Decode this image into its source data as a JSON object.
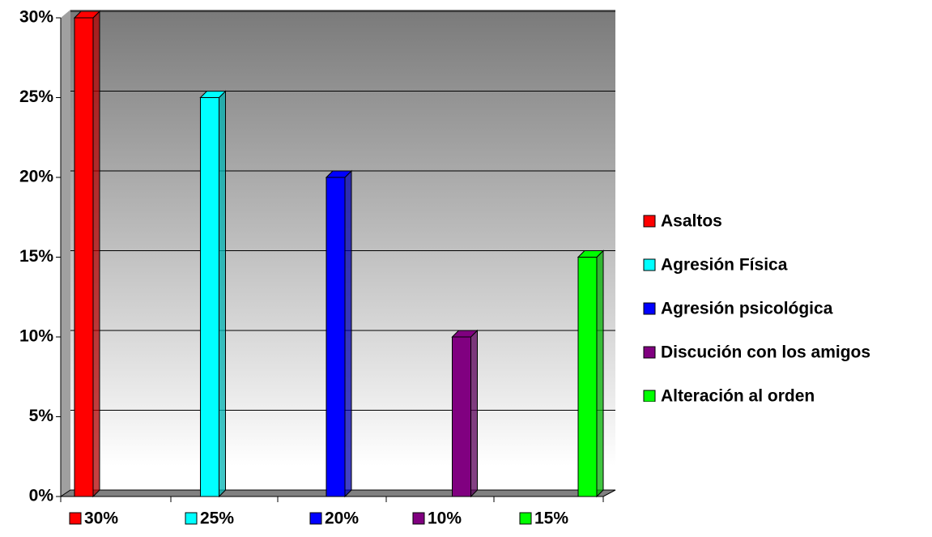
{
  "chart_data": {
    "type": "bar",
    "series": [
      {
        "name": "Asaltos",
        "color": "#ff0000",
        "values": [
          30
        ],
        "value_labels": [
          "30%"
        ]
      },
      {
        "name": "Agresión Física",
        "color": "#00ffff",
        "values": [
          25
        ],
        "value_labels": [
          "25%"
        ]
      },
      {
        "name": "Agresión psicológica",
        "color": "#0000ff",
        "values": [
          20
        ],
        "value_labels": [
          "20%"
        ]
      },
      {
        "name": "Discución con los amigos",
        "color": "#800080",
        "values": [
          10
        ],
        "value_labels": [
          "10%"
        ]
      },
      {
        "name": "Alteración al orden",
        "color": "#00ff00",
        "values": [
          15
        ],
        "value_labels": [
          "15%"
        ]
      }
    ],
    "ylim": [
      0,
      30
    ],
    "yticks": [
      {
        "value": 0,
        "label": "0%"
      },
      {
        "value": 5,
        "label": "5%"
      },
      {
        "value": 10,
        "label": "10%"
      },
      {
        "value": 15,
        "label": "15%"
      },
      {
        "value": 20,
        "label": "20%"
      },
      {
        "value": 25,
        "label": "25%"
      },
      {
        "value": 30,
        "label": "30%"
      }
    ],
    "grid": true,
    "legend": "right"
  }
}
